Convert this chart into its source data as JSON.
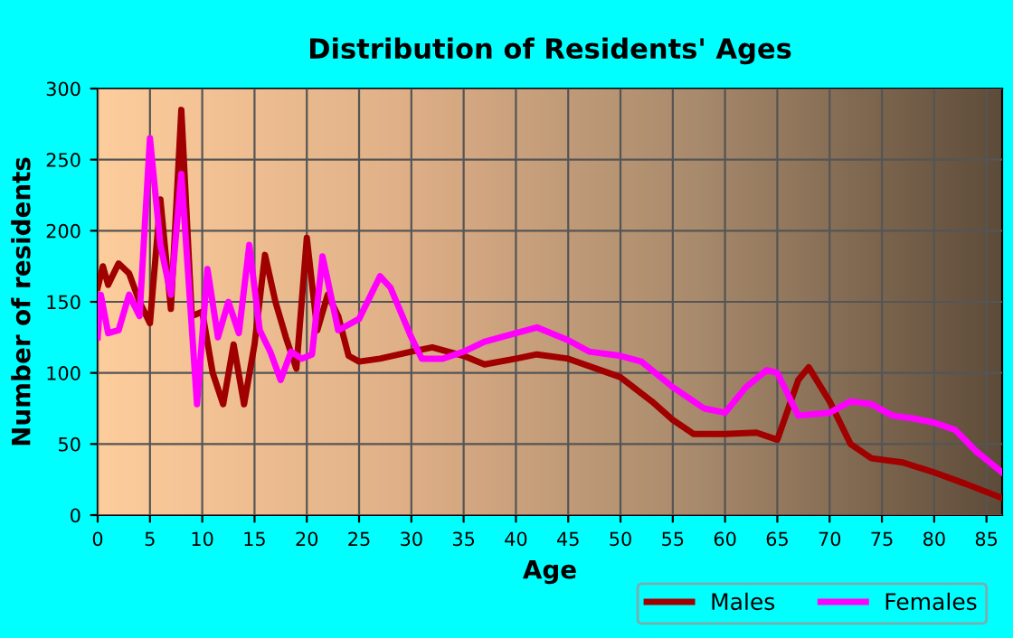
{
  "chart_data": {
    "type": "line",
    "title": "Distribution of Residents' Ages",
    "xlabel": "Age",
    "ylabel": "Number of residents",
    "xlim": [
      0,
      86.5
    ],
    "ylim": [
      0,
      300
    ],
    "xticks": [
      0,
      5,
      10,
      15,
      20,
      25,
      30,
      35,
      40,
      45,
      50,
      55,
      60,
      65,
      70,
      75,
      80,
      85
    ],
    "yticks": [
      0,
      50,
      100,
      150,
      200,
      250,
      300
    ],
    "grid": true,
    "legend": "bottom",
    "marker": "none",
    "line_style": "solid",
    "series": [
      {
        "name": "Males",
        "color": "#a00000",
        "x": [
          0,
          0.5,
          1,
          2,
          3,
          4,
          5,
          6,
          7,
          8,
          9,
          10,
          11,
          12,
          13,
          14,
          15,
          16,
          17,
          18,
          19,
          20,
          21,
          22,
          23,
          24,
          25,
          27,
          30,
          32,
          35,
          37,
          40,
          42,
          45,
          50,
          53,
          55,
          57,
          60,
          63,
          65,
          67,
          68,
          70,
          72,
          74,
          77,
          80,
          83,
          86.5
        ],
        "values": [
          160,
          175,
          162,
          177,
          170,
          150,
          135,
          222,
          145,
          285,
          140,
          143,
          100,
          78,
          120,
          78,
          120,
          183,
          150,
          125,
          103,
          195,
          130,
          155,
          140,
          112,
          108,
          110,
          115,
          118,
          112,
          106,
          110,
          113,
          110,
          97,
          80,
          67,
          57,
          57,
          58,
          53,
          95,
          104,
          80,
          50,
          40,
          37,
          30,
          22,
          12
        ]
      },
      {
        "name": "Females",
        "color": "#ff00ff",
        "x": [
          0,
          0.3,
          1,
          2,
          3,
          4,
          5,
          6,
          7,
          8,
          9.5,
          10.5,
          11.5,
          12.5,
          13.5,
          14.5,
          15.5,
          16.5,
          17.5,
          18.5,
          19.5,
          20.5,
          21.5,
          22,
          23,
          25,
          27,
          28,
          30,
          31,
          33,
          35,
          37,
          40,
          42,
          45,
          47,
          50,
          52,
          55,
          58,
          60,
          62,
          64,
          65,
          66,
          67,
          70,
          72,
          74,
          76,
          78,
          80,
          82,
          84,
          86.5
        ],
        "values": [
          125,
          155,
          128,
          130,
          155,
          140,
          265,
          190,
          155,
          240,
          78,
          173,
          125,
          150,
          128,
          190,
          130,
          115,
          95,
          115,
          110,
          113,
          182,
          165,
          130,
          138,
          168,
          160,
          125,
          110,
          110,
          115,
          122,
          128,
          132,
          123,
          115,
          112,
          108,
          90,
          75,
          72,
          90,
          102,
          100,
          85,
          70,
          72,
          80,
          78,
          70,
          68,
          65,
          60,
          45,
          30
        ]
      }
    ]
  }
}
